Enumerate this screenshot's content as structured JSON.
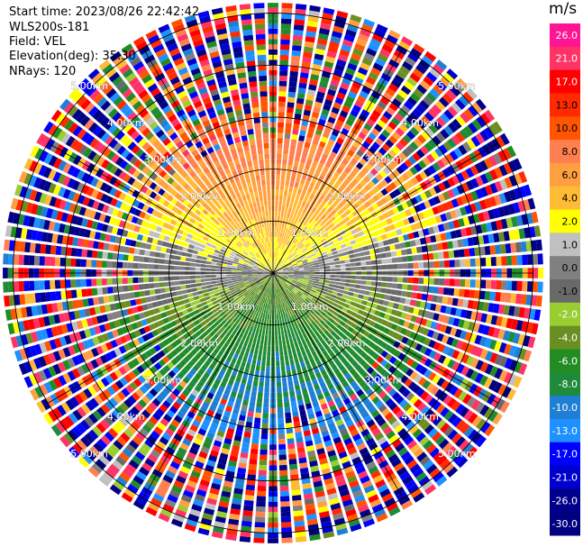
{
  "info": {
    "start_time": "Start time: 2023/08/26 22:42:42",
    "instrument": "WLS200s-181",
    "field": "Field: VEL",
    "elevation": "Elevation(deg): 35.30",
    "nrays": "NRays: 120"
  },
  "chart_data": {
    "type": "heatmap",
    "projection": "polar-ppi",
    "field": "VEL",
    "units": "m/s",
    "nrays": 120,
    "elevation_deg": 35.3,
    "range_rings_km": [
      1.0,
      2.0,
      3.0,
      4.0,
      5.0
    ],
    "ring_labels": [
      "1.00km",
      "2.00km",
      "3.00km",
      "4.00km",
      "5.00km"
    ],
    "spoke_angles_deg": [
      0,
      30,
      60,
      90,
      120,
      150,
      180,
      210,
      240,
      270,
      300,
      330
    ],
    "colorbar": {
      "title": "m/s",
      "ticks": [
        "26.0",
        "21.0",
        "17.0",
        "13.0",
        "10.0",
        "8.0",
        "6.0",
        "4.0",
        "2.0",
        "1.0",
        "0.0",
        "-1.0",
        "-2.0",
        "-4.0",
        "-6.0",
        "-8.0",
        "-10.0",
        "-13.0",
        "-17.0",
        "-21.0",
        "-26.0",
        "-30.0"
      ],
      "colors": [
        "#ff1493",
        "#ff3366",
        "#ff0000",
        "#ff2a00",
        "#ff5500",
        "#ff7f50",
        "#ff9f40",
        "#ffbb33",
        "#ffff00",
        "#c0c0c0",
        "#808080",
        "#696969",
        "#9acd32",
        "#6b8e23",
        "#228b22",
        "#1e8b3a",
        "#1e7fd4",
        "#1e90ff",
        "#0000ff",
        "#0000cd",
        "#00008b",
        "#000080"
      ]
    }
  }
}
